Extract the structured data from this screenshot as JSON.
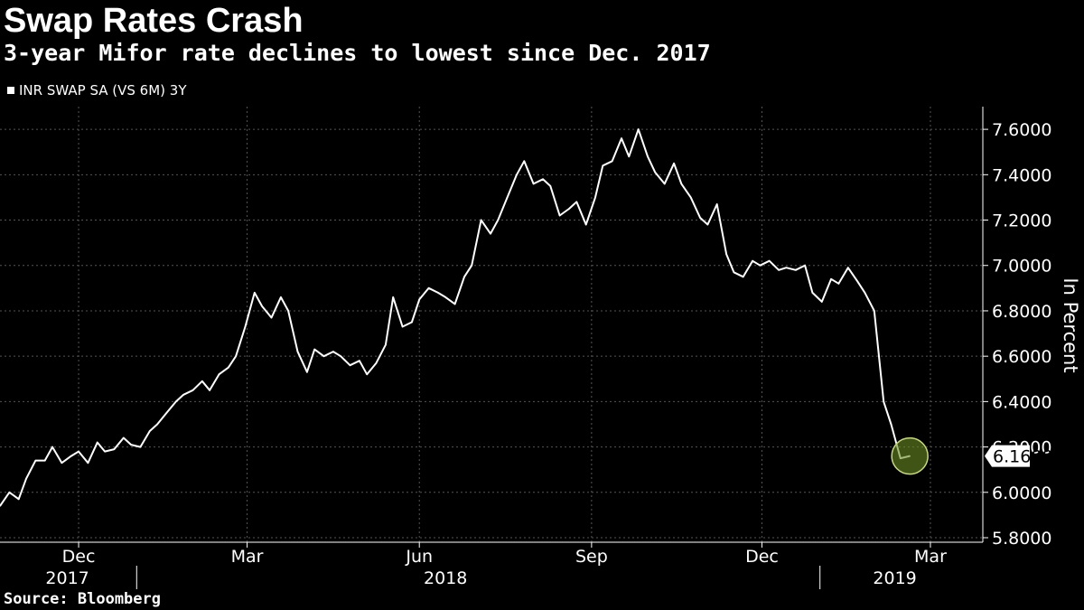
{
  "header": {
    "title": "Swap Rates Crash",
    "subtitle": "3-year Mifor rate declines to lowest since Dec. 2017"
  },
  "footer": {
    "source": "Source: Bloomberg"
  },
  "colors": {
    "background": "#000000",
    "line": "#ffffff",
    "highlight": "#6b8e23",
    "grid": "#555555"
  },
  "chart_data": {
    "type": "line",
    "title": "Swap Rates Crash",
    "subtitle": "3-year Mifor rate declines to lowest since Dec. 2017",
    "ylabel": "In Percent",
    "ylim": [
      5.8,
      7.7
    ],
    "yticks": [
      "7.6000",
      "7.4000",
      "7.2000",
      "7.0000",
      "6.8000",
      "6.6000",
      "6.4000",
      "6.2000",
      "6.0000",
      "5.8000"
    ],
    "ytick_values": [
      7.6,
      7.4,
      7.2,
      7.0,
      6.8,
      6.6,
      6.4,
      6.2,
      6.0,
      5.8
    ],
    "xlim": [
      "2017-10-20",
      "2019-03-29"
    ],
    "xticks": [
      {
        "label": "Dec",
        "date": "2017-12-01"
      },
      {
        "label": "Mar",
        "date": "2018-03-01"
      },
      {
        "label": "Jun",
        "date": "2018-06-01"
      },
      {
        "label": "Sep",
        "date": "2018-09-01"
      },
      {
        "label": "Dec",
        "date": "2018-12-01"
      },
      {
        "label": "Mar",
        "date": "2019-03-01"
      }
    ],
    "year_labels": [
      {
        "label": "2017",
        "date": "2017-11-25"
      },
      {
        "label": "2018",
        "date": "2018-06-15"
      },
      {
        "label": "2019",
        "date": "2019-02-10"
      }
    ],
    "year_separators": [
      "2018-01-01",
      "2019-01-01"
    ],
    "grid": true,
    "legend": "top-left",
    "series": [
      {
        "name": "INR SWAP SA (VS 6M) 3Y",
        "last_value_label": "6.1600",
        "points": [
          [
            "2017-10-20",
            5.94
          ],
          [
            "2017-10-25",
            6.0
          ],
          [
            "2017-10-30",
            5.97
          ],
          [
            "2017-11-03",
            6.06
          ],
          [
            "2017-11-08",
            6.14
          ],
          [
            "2017-11-13",
            6.14
          ],
          [
            "2017-11-17",
            6.2
          ],
          [
            "2017-11-22",
            6.13
          ],
          [
            "2017-11-27",
            6.16
          ],
          [
            "2017-12-01",
            6.18
          ],
          [
            "2017-12-06",
            6.13
          ],
          [
            "2017-12-11",
            6.22
          ],
          [
            "2017-12-15",
            6.18
          ],
          [
            "2017-12-20",
            6.19
          ],
          [
            "2017-12-25",
            6.24
          ],
          [
            "2017-12-29",
            6.21
          ],
          [
            "2018-01-03",
            6.2
          ],
          [
            "2018-01-08",
            6.27
          ],
          [
            "2018-01-12",
            6.3
          ],
          [
            "2018-01-17",
            6.35
          ],
          [
            "2018-01-22",
            6.4
          ],
          [
            "2018-01-26",
            6.43
          ],
          [
            "2018-01-31",
            6.45
          ],
          [
            "2018-02-05",
            6.49
          ],
          [
            "2018-02-09",
            6.45
          ],
          [
            "2018-02-14",
            6.52
          ],
          [
            "2018-02-19",
            6.55
          ],
          [
            "2018-02-23",
            6.6
          ],
          [
            "2018-02-28",
            6.73
          ],
          [
            "2018-03-05",
            6.88
          ],
          [
            "2018-03-09",
            6.82
          ],
          [
            "2018-03-14",
            6.77
          ],
          [
            "2018-03-19",
            6.86
          ],
          [
            "2018-03-23",
            6.8
          ],
          [
            "2018-03-28",
            6.62
          ],
          [
            "2018-04-02",
            6.53
          ],
          [
            "2018-04-06",
            6.63
          ],
          [
            "2018-04-11",
            6.6
          ],
          [
            "2018-04-16",
            6.62
          ],
          [
            "2018-04-20",
            6.6
          ],
          [
            "2018-04-25",
            6.56
          ],
          [
            "2018-04-30",
            6.58
          ],
          [
            "2018-05-04",
            6.52
          ],
          [
            "2018-05-09",
            6.57
          ],
          [
            "2018-05-14",
            6.65
          ],
          [
            "2018-05-18",
            6.86
          ],
          [
            "2018-05-23",
            6.73
          ],
          [
            "2018-05-28",
            6.75
          ],
          [
            "2018-06-01",
            6.85
          ],
          [
            "2018-06-06",
            6.9
          ],
          [
            "2018-06-11",
            6.88
          ],
          [
            "2018-06-15",
            6.86
          ],
          [
            "2018-06-20",
            6.83
          ],
          [
            "2018-06-25",
            6.95
          ],
          [
            "2018-06-29",
            7.0
          ],
          [
            "2018-07-04",
            7.2
          ],
          [
            "2018-07-09",
            7.14
          ],
          [
            "2018-07-13",
            7.2
          ],
          [
            "2018-07-18",
            7.3
          ],
          [
            "2018-07-23",
            7.4
          ],
          [
            "2018-07-27",
            7.46
          ],
          [
            "2018-08-01",
            7.36
          ],
          [
            "2018-08-06",
            7.38
          ],
          [
            "2018-08-10",
            7.35
          ],
          [
            "2018-08-15",
            7.22
          ],
          [
            "2018-08-20",
            7.25
          ],
          [
            "2018-08-24",
            7.28
          ],
          [
            "2018-08-29",
            7.18
          ],
          [
            "2018-09-03",
            7.3
          ],
          [
            "2018-09-07",
            7.44
          ],
          [
            "2018-09-12",
            7.46
          ],
          [
            "2018-09-17",
            7.56
          ],
          [
            "2018-09-21",
            7.48
          ],
          [
            "2018-09-26",
            7.6
          ],
          [
            "2018-10-01",
            7.48
          ],
          [
            "2018-10-05",
            7.41
          ],
          [
            "2018-10-10",
            7.36
          ],
          [
            "2018-10-15",
            7.45
          ],
          [
            "2018-10-19",
            7.36
          ],
          [
            "2018-10-24",
            7.3
          ],
          [
            "2018-10-29",
            7.21
          ],
          [
            "2018-11-02",
            7.18
          ],
          [
            "2018-11-07",
            7.27
          ],
          [
            "2018-11-12",
            7.05
          ],
          [
            "2018-11-16",
            6.97
          ],
          [
            "2018-11-21",
            6.95
          ],
          [
            "2018-11-26",
            7.02
          ],
          [
            "2018-11-30",
            7.0
          ],
          [
            "2018-12-05",
            7.02
          ],
          [
            "2018-12-10",
            6.98
          ],
          [
            "2018-12-14",
            6.99
          ],
          [
            "2018-12-19",
            6.98
          ],
          [
            "2018-12-24",
            7.0
          ],
          [
            "2018-12-28",
            6.88
          ],
          [
            "2019-01-02",
            6.84
          ],
          [
            "2019-01-07",
            6.94
          ],
          [
            "2019-01-11",
            6.92
          ],
          [
            "2019-01-16",
            6.99
          ],
          [
            "2019-01-21",
            6.93
          ],
          [
            "2019-01-25",
            6.88
          ],
          [
            "2019-01-30",
            6.8
          ],
          [
            "2019-02-04",
            6.4
          ],
          [
            "2019-02-08",
            6.3
          ],
          [
            "2019-02-13",
            6.15
          ],
          [
            "2019-02-18",
            6.16
          ]
        ]
      }
    ]
  }
}
